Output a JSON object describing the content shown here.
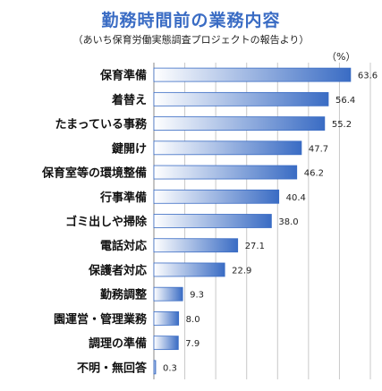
{
  "chart_data": {
    "type": "bar",
    "orientation": "horizontal",
    "title": "勤務時間前の業務内容",
    "subtitle": "（あいち保育労働実態調査プロジェクトの報告より）",
    "unit": "（%）",
    "categories": [
      "保育準備",
      "着替え",
      "たまっている事務",
      "鍵開け",
      "保育室等の環境整備",
      "行事準備",
      "ゴミ出しや掃除",
      "電話対応",
      "保護者対応",
      "勤務調整",
      "園運営・管理業務",
      "調理の準備",
      "不明・無回答"
    ],
    "values": [
      63.6,
      56.4,
      55.2,
      47.7,
      46.2,
      40.4,
      38.0,
      27.1,
      22.9,
      9.3,
      8.0,
      7.9,
      0.3
    ],
    "value_labels": [
      "63.6",
      "56.4",
      "55.2",
      "47.7",
      "46.2",
      "40.4",
      "38.0",
      "27.1",
      "22.9",
      "9.3",
      "8.0",
      "7.9",
      "0.3"
    ],
    "xlim": [
      0,
      70
    ],
    "grid": true,
    "bar_color": "#3a6cc4",
    "bar_fade_color": "#ffffff",
    "grid_color": "#c8c8c8",
    "title_color": "#3a6cc4"
  }
}
